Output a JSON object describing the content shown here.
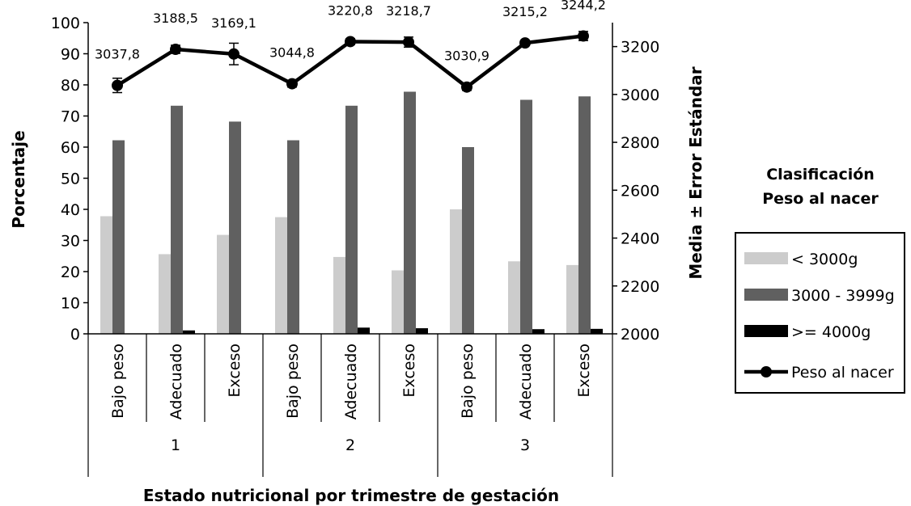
{
  "chart_data": {
    "type": "bar",
    "xlabel": "Estado nutricional por trimestre de gestación",
    "ylabel": "Porcentaje",
    "y2label": "Media ± Error Estándar",
    "ylim": [
      0,
      100
    ],
    "y2lim": [
      2000,
      3300
    ],
    "yticks": [
      "0",
      "10",
      "20",
      "30",
      "40",
      "50",
      "60",
      "70",
      "80",
      "90",
      "100"
    ],
    "y2ticks": [
      "2000",
      "2200",
      "2400",
      "2600",
      "2800",
      "3000",
      "3200"
    ],
    "groups": [
      "1",
      "2",
      "3"
    ],
    "categories": [
      "Bajo peso",
      "Adecuado",
      "Exceso",
      "Bajo peso",
      "Adecuado",
      "Exceso",
      "Bajo peso",
      "Adecuado",
      "Exceso"
    ],
    "series": [
      {
        "name": "< 3000g",
        "color": "#cccccc",
        "values": [
          37.8,
          25.6,
          31.8,
          37.5,
          24.7,
          20.4,
          40.0,
          23.3,
          22.1
        ]
      },
      {
        "name": "3000 - 3999g",
        "color": "#606060",
        "values": [
          62.2,
          73.3,
          68.2,
          62.2,
          73.3,
          77.8,
          60.0,
          75.2,
          76.3
        ]
      },
      {
        "name": ">= 4000g",
        "color": "#000000",
        "values": [
          0,
          1.1,
          0,
          0,
          2.0,
          1.8,
          0,
          1.5,
          1.6
        ]
      }
    ],
    "line_series": {
      "name": "Peso al nacer",
      "axis": "right",
      "values": [
        3037.8,
        3188.5,
        3169.1,
        3044.8,
        3220.8,
        3218.7,
        3030.9,
        3215.2,
        3244.2
      ],
      "errors": [
        30,
        17,
        45,
        14,
        12,
        21,
        14,
        11,
        19
      ],
      "labels": [
        "3037,8",
        "3188,5",
        "3169,1",
        "3044,8",
        "3220,8",
        "3218,7",
        "3030,9",
        "3215,2",
        "3244,2"
      ]
    },
    "legend": {
      "title": [
        "Clasificación",
        "Peso al nacer"
      ],
      "position": "right"
    },
    "grid": false
  }
}
